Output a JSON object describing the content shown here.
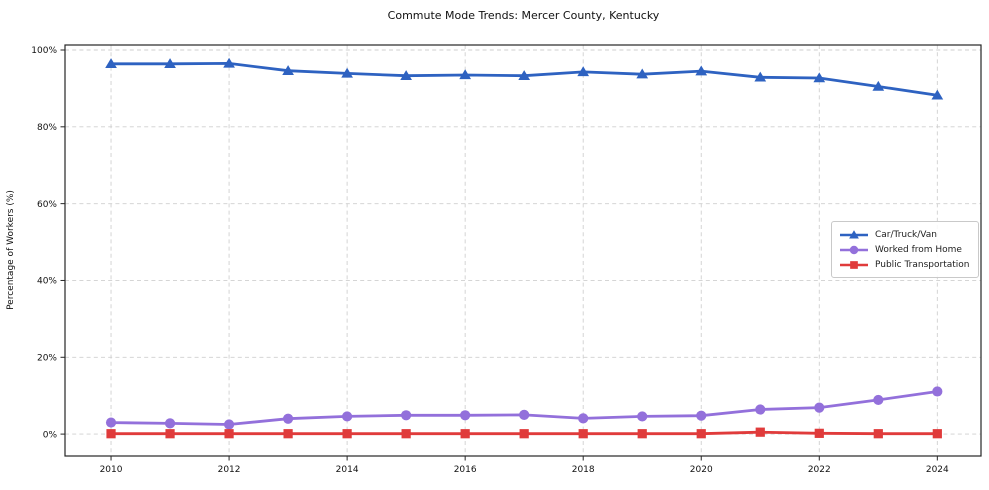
{
  "chart_data": {
    "type": "line",
    "title": "Commute Mode Trends: Mercer County, Kentucky",
    "xlabel": "",
    "ylabel": "Percentage of Workers (%)",
    "x": [
      2010,
      2011,
      2012,
      2013,
      2014,
      2015,
      2016,
      2017,
      2018,
      2019,
      2020,
      2021,
      2022,
      2023,
      2024
    ],
    "xticks": [
      2010,
      2012,
      2014,
      2016,
      2018,
      2020,
      2022,
      2024
    ],
    "xtick_labels": [
      "2010",
      "2012",
      "2014",
      "2016",
      "2018",
      "2020",
      "2022",
      "2024"
    ],
    "yticks": [
      0,
      20,
      40,
      60,
      80,
      100
    ],
    "ytick_labels": [
      "0%",
      "20%",
      "40%",
      "60%",
      "80%",
      "100%"
    ],
    "xlim": [
      2009.22,
      2024.74
    ],
    "ylim": [
      -5.7,
      101.3
    ],
    "grid": true,
    "grid_style": "dashed",
    "legend_position": "center-right",
    "series": [
      {
        "name": "Car/Truck/Van",
        "color": "#2e62c1",
        "marker": "triangle",
        "values": [
          96.4,
          96.4,
          96.5,
          94.6,
          93.9,
          93.3,
          93.5,
          93.3,
          94.3,
          93.7,
          94.5,
          92.9,
          92.7,
          90.5,
          88.2
        ]
      },
      {
        "name": "Worked from Home",
        "color": "#9370db",
        "marker": "circle",
        "values": [
          3.0,
          2.8,
          2.5,
          4.0,
          4.6,
          4.9,
          4.9,
          5.0,
          4.1,
          4.6,
          4.8,
          6.4,
          6.9,
          8.9,
          11.1
        ]
      },
      {
        "name": "Public Transportation",
        "color": "#e03b3b",
        "marker": "square",
        "values": [
          0.1,
          0.1,
          0.1,
          0.1,
          0.1,
          0.1,
          0.1,
          0.1,
          0.1,
          0.1,
          0.1,
          0.5,
          0.2,
          0.1,
          0.1
        ]
      }
    ]
  }
}
